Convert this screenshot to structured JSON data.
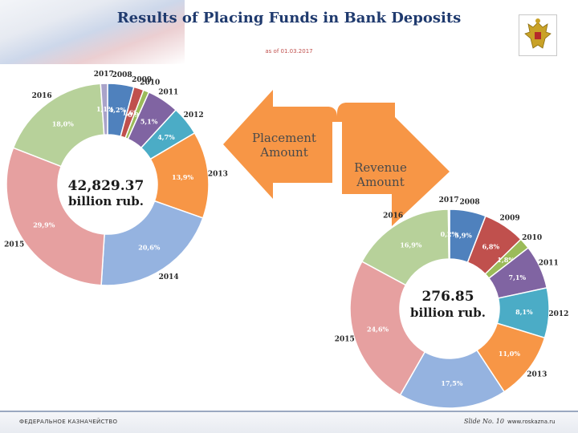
{
  "slide": {
    "title": "Results of Placing Funds in Bank Deposits",
    "subtitle": "as of 01.03.2017",
    "footer_org": "ФЕДЕРАЛЬНОЕ КАЗНАЧЕЙСТВО",
    "slide_number": "Slide No. 10",
    "footer_url": "www.roskazna.ru"
  },
  "arrows": {
    "placement_label": [
      "Placement",
      "Amount"
    ],
    "revenue_label": [
      "Revenue",
      "Amount"
    ],
    "color": "#f79646"
  },
  "chart_data": [
    {
      "type": "pie",
      "variant": "donut",
      "center_label": [
        "42,829.37",
        "billion rub."
      ],
      "categories": [
        "2008",
        "2009",
        "2010",
        "2011",
        "2012",
        "2013",
        "2014",
        "2015",
        "2016",
        "2017"
      ],
      "values": [
        4.2,
        1.6,
        0.9,
        5.1,
        4.7,
        13.9,
        20.6,
        29.9,
        18.0,
        1.1
      ],
      "labels": [
        "4,2%",
        "1,6%",
        "0,9%",
        "5,1%",
        "4,7%",
        "13,9%",
        "20,6%",
        "29,9%",
        "18,0%",
        "1,1%"
      ],
      "colors": [
        "#4f81bd",
        "#c0504d",
        "#9bbb59",
        "#8064a2",
        "#4bacc6",
        "#f79646",
        "#95b3e0",
        "#e6a0a0",
        "#b7d19a",
        "#a9a3c9"
      ]
    },
    {
      "type": "pie",
      "variant": "donut",
      "center_label": [
        "276.85",
        "billion rub."
      ],
      "categories": [
        "2008",
        "2009",
        "2010",
        "2011",
        "2012",
        "2013",
        "2014",
        "2015",
        "2016",
        "2017"
      ],
      "values": [
        5.9,
        6.8,
        1.8,
        7.1,
        8.1,
        11.0,
        17.5,
        24.6,
        16.9,
        0.2
      ],
      "labels": [
        "5,9%",
        "6,8%",
        "1,8%",
        "7,1%",
        "8,1%",
        "11,0%",
        "17,5%",
        "24,6%",
        "16,9%",
        "0,2%"
      ],
      "colors": [
        "#4f81bd",
        "#c0504d",
        "#9bbb59",
        "#8064a2",
        "#4bacc6",
        "#f79646",
        "#95b3e0",
        "#e6a0a0",
        "#b7d19a",
        "#a9a3c9"
      ]
    }
  ]
}
